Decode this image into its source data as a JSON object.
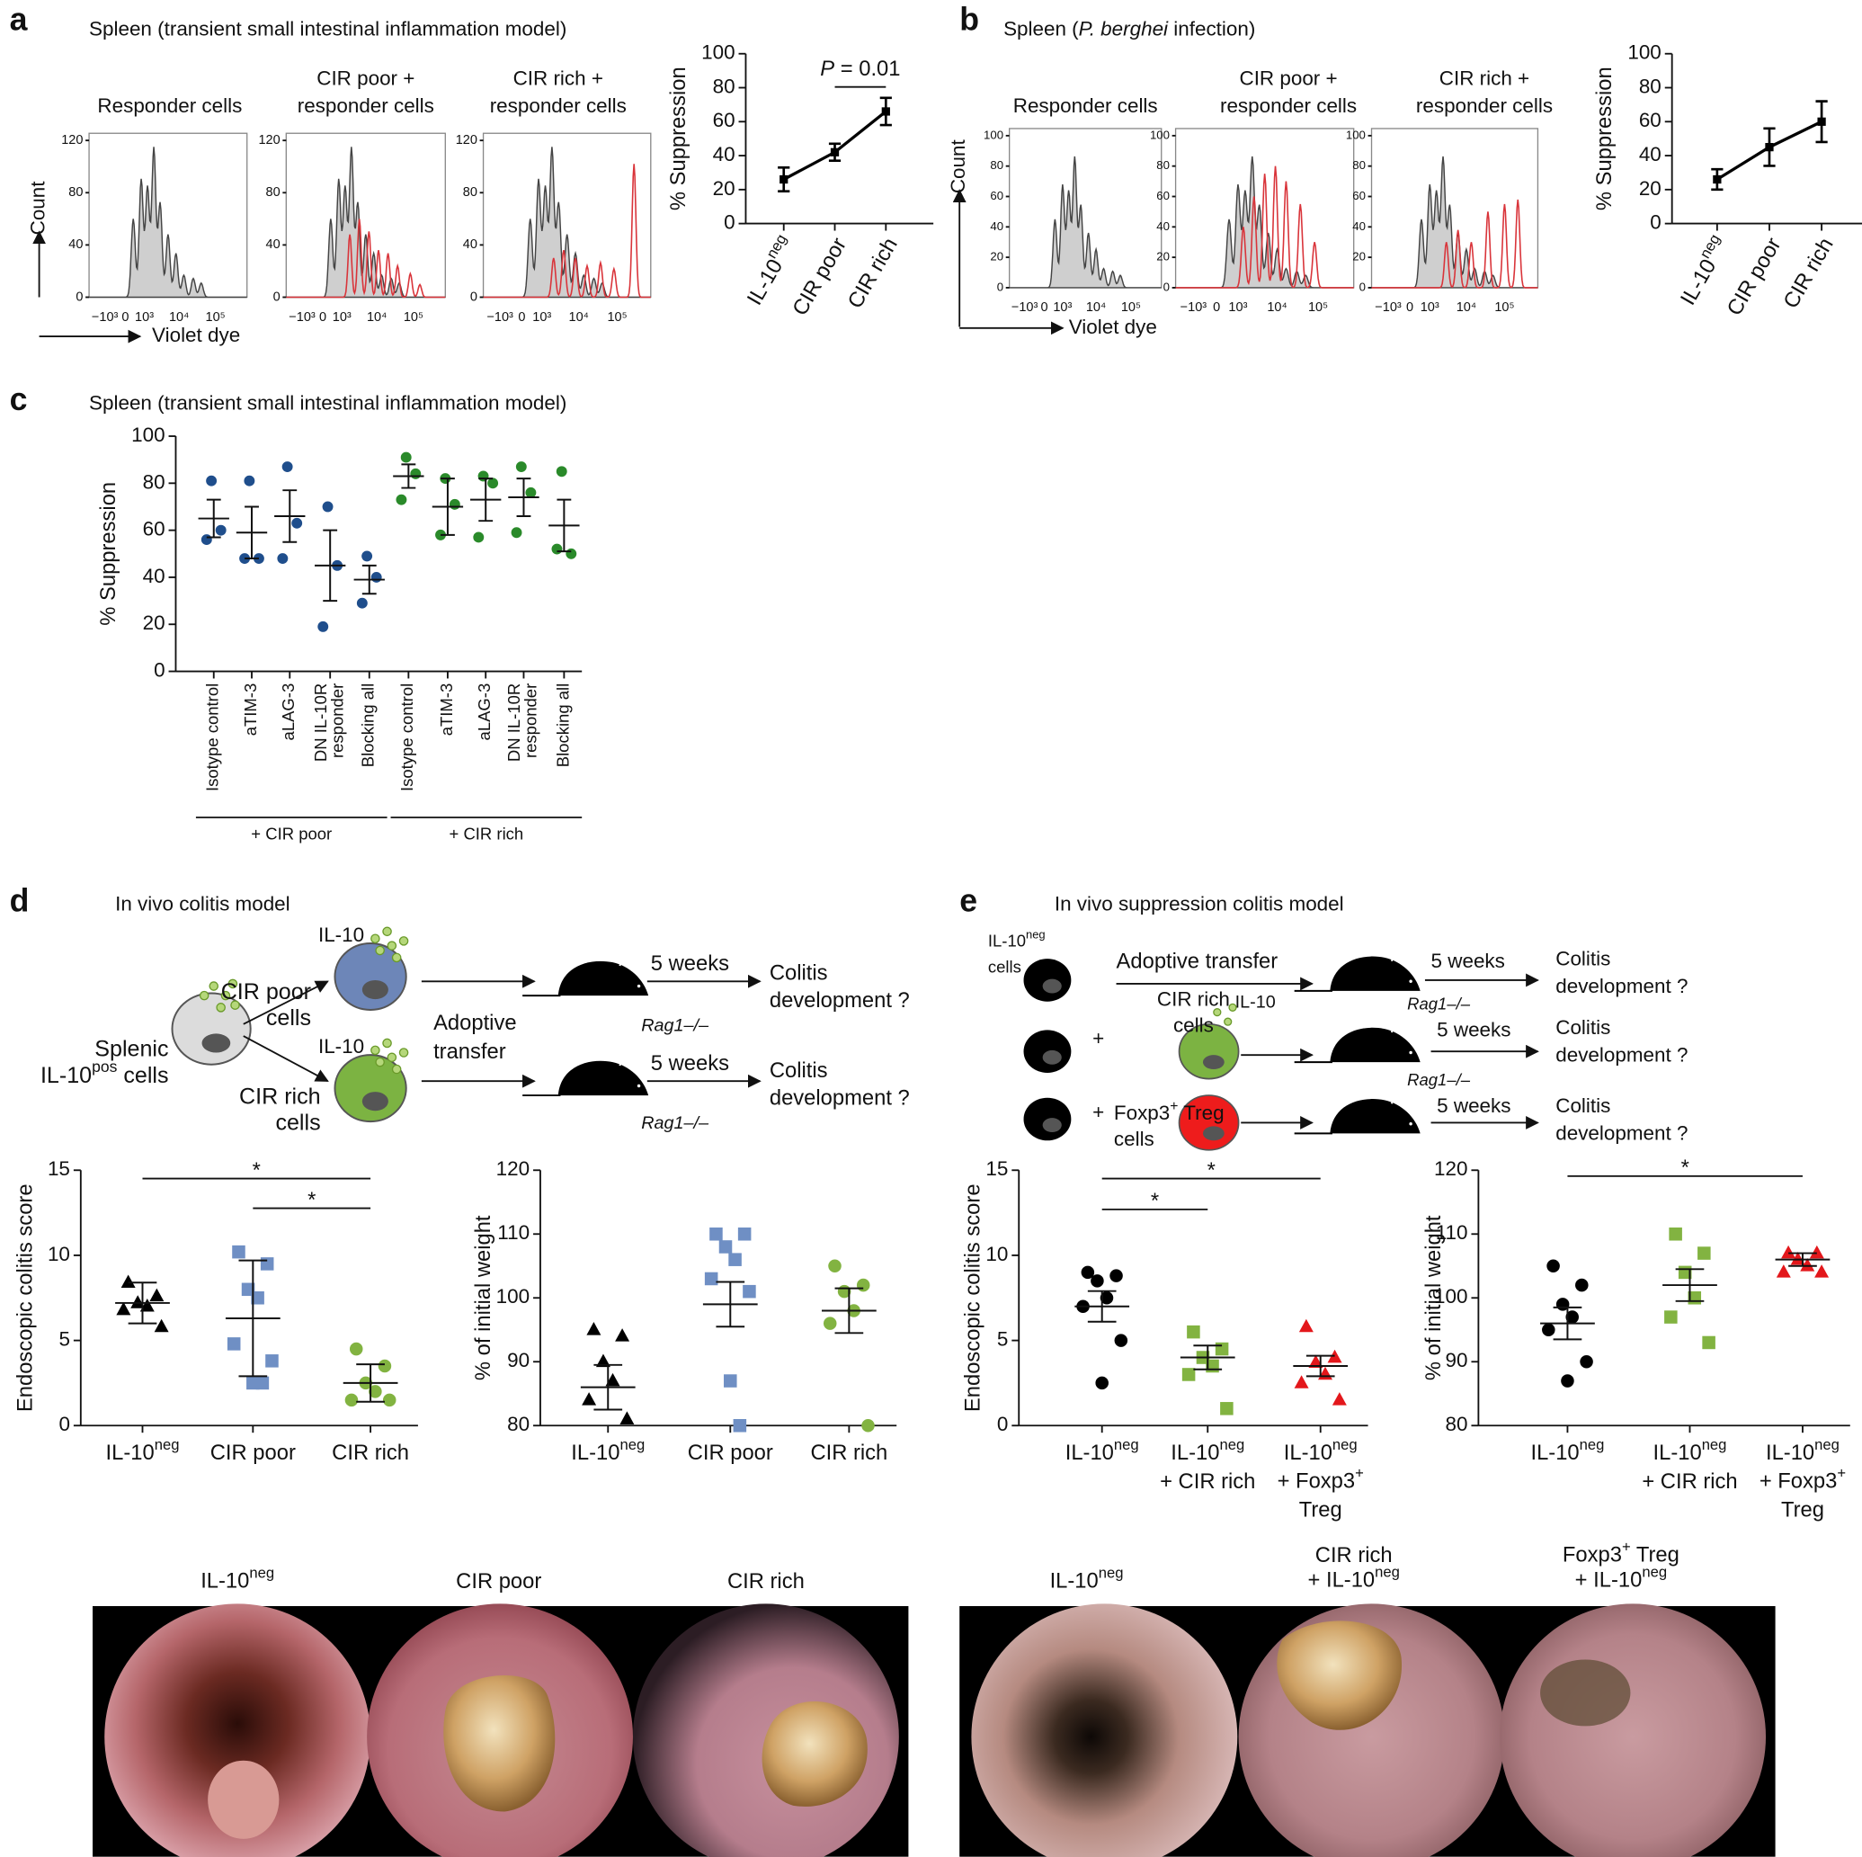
{
  "figure": {
    "panel_labels": [
      "a",
      "b",
      "c",
      "d",
      "e"
    ],
    "flow": [
      {
        "subtitle": "Spleen (transient small intestinal inflammation model)",
        "titles": [
          [
            "Responder cells"
          ],
          [
            "CIR poor +",
            "responder cells"
          ],
          [
            "CIR rich +",
            "responder cells"
          ]
        ],
        "ylim": [
          0,
          120
        ],
        "yticks": [
          0,
          40,
          80,
          120
        ],
        "xtick_labels": [
          "−10³",
          "0",
          "10³",
          "10⁴",
          "10⁵"
        ],
        "ylabel": "Count",
        "xlabel": "Violet dye"
      },
      {
        "subtitle": {
          "text": "Spleen (",
          "italic": "P. berghei",
          "after": " infection)"
        },
        "titles": [
          [
            "Responder cells"
          ],
          [
            "CIR poor +",
            "responder cells"
          ],
          [
            "CIR rich +",
            "responder cells"
          ]
        ],
        "ylim": [
          0,
          100
        ],
        "yticks": [
          0,
          20,
          40,
          60,
          80,
          100
        ],
        "xtick_labels": [
          "−10³",
          "0",
          "10³",
          "10⁴",
          "10⁵"
        ],
        "ylabel": "Count",
        "xlabel": "Violet dye"
      }
    ],
    "diagram_d": {
      "title": "In vivo colitis model",
      "source": [
        "Splenic",
        {
          "text": "IL-10",
          "sup": "pos",
          "after": " cells"
        }
      ],
      "cytokine": "IL-10",
      "poor": [
        "CIR poor",
        "cells"
      ],
      "rich": [
        "CIR rich",
        "cells"
      ],
      "transfer": [
        "Adoptive",
        "transfer"
      ],
      "duration": "5 weeks",
      "outcome": [
        "Colitis",
        "development ?"
      ],
      "host": "Rag1–/–"
    },
    "diagram_e": {
      "title": "In vivo suppression colitis model",
      "responder": [
        {
          "text": "IL-10",
          "sup": "neg"
        },
        "cells"
      ],
      "transfer": "Adoptive transfer",
      "plus": "+",
      "rich": [
        "CIR rich",
        "cells"
      ],
      "cytokine": "IL-10",
      "treg": [
        {
          "text": "Foxp3",
          "sup": "+",
          "after": " Treg"
        },
        "cells"
      ],
      "duration": "5 weeks",
      "outcome": [
        "Colitis",
        "development ?"
      ],
      "host": "Rag1–/–"
    },
    "photos": {
      "left": [
        [
          {
            "text": "IL-10",
            "sup": "neg"
          }
        ],
        [
          "CIR poor"
        ],
        [
          "CIR rich"
        ]
      ],
      "right": [
        [
          {
            "text": "IL-10",
            "sup": "neg"
          }
        ],
        [
          "CIR rich",
          {
            "text": "+ IL-10",
            "sup": "neg"
          }
        ],
        [
          {
            "text": "Foxp3",
            "sup": "+",
            "after": " Treg"
          },
          {
            "text": "+ IL-10",
            "sup": "neg"
          }
        ]
      ]
    }
  },
  "chart_data": [
    {
      "type": "line",
      "ylabel": "% Suppression",
      "categories": [
        [
          {
            "text": "IL-10",
            "sup": "neg"
          }
        ],
        [
          "CIR poor"
        ],
        [
          "CIR rich"
        ]
      ],
      "values": [
        26,
        42,
        66
      ],
      "errors": [
        7,
        5,
        8
      ],
      "color": "#000000",
      "ylim": [
        0,
        100
      ],
      "yticks": [
        0,
        20,
        40,
        60,
        80,
        100
      ],
      "significance": [
        {
          "from": 1,
          "to": 2,
          "label": {
            "italic": "P",
            "after": " = 0.01"
          }
        }
      ]
    },
    {
      "type": "line",
      "ylabel": "% Suppression",
      "categories": [
        [
          {
            "text": "IL-10",
            "sup": "neg"
          }
        ],
        [
          "CIR poor"
        ],
        [
          "CIR rich"
        ]
      ],
      "values": [
        26,
        45,
        60
      ],
      "errors": [
        6,
        11,
        12
      ],
      "color": "#000000",
      "ylim": [
        0,
        100
      ],
      "yticks": [
        0,
        20,
        40,
        60,
        80,
        100
      ]
    },
    {
      "type": "dot",
      "subtitle": "Spleen (transient small intestinal inflammation model)",
      "ylabel": "% Suppression",
      "categories": [
        [
          "Isotype control"
        ],
        [
          "aTIM-3"
        ],
        [
          "aLAG-3"
        ],
        [
          "DN IL-10R",
          "responder"
        ],
        [
          "Blocking all"
        ],
        [
          "Isotype control"
        ],
        [
          "aTIM-3"
        ],
        [
          "aLAG-3"
        ],
        [
          "DN IL-10R",
          "responder"
        ],
        [
          "Blocking all"
        ]
      ],
      "points": [
        [
          81,
          60,
          56
        ],
        [
          81,
          48,
          48
        ],
        [
          87,
          63,
          48
        ],
        [
          70,
          45,
          19
        ],
        [
          49,
          40,
          29
        ],
        [
          91,
          84,
          73
        ],
        [
          82,
          71,
          58
        ],
        [
          83,
          80,
          57
        ],
        [
          87,
          76,
          59
        ],
        [
          85,
          50,
          52
        ]
      ],
      "means": [
        65,
        59,
        66,
        45,
        39,
        83,
        70,
        73,
        74,
        62
      ],
      "errors": [
        8,
        11,
        11,
        15,
        6,
        5,
        12,
        9,
        8,
        11
      ],
      "colors": [
        "#1f4e8c",
        "#1f4e8c",
        "#1f4e8c",
        "#1f4e8c",
        "#1f4e8c",
        "#2a8a2a",
        "#2a8a2a",
        "#2a8a2a",
        "#2a8a2a",
        "#2a8a2a"
      ],
      "markers": [
        "circle",
        "circle",
        "circle",
        "circle",
        "circle",
        "circle",
        "circle",
        "circle",
        "circle",
        "circle"
      ],
      "groups": [
        {
          "label": "+ CIR poor",
          "members": [
            0,
            1,
            2,
            3,
            4
          ]
        },
        {
          "label": "+ CIR rich",
          "members": [
            5,
            6,
            7,
            8,
            9
          ]
        }
      ],
      "ylim": [
        0,
        100
      ],
      "yticks": [
        0,
        20,
        40,
        60,
        80,
        100
      ]
    },
    {
      "type": "dot",
      "ylabel": "Endoscopic colitis score",
      "categories": [
        [
          {
            "text": "IL-10",
            "sup": "neg"
          }
        ],
        [
          "CIR poor"
        ],
        [
          "CIR rich"
        ]
      ],
      "points": [
        [
          8.4,
          7.6,
          7.2,
          7.0,
          6.8,
          5.8
        ],
        [
          10.2,
          9.5,
          8.0,
          7.5,
          4.8,
          3.8,
          2.5,
          2.5
        ],
        [
          4.5,
          3.5,
          2.5,
          2.0,
          1.5,
          1.5
        ]
      ],
      "means": [
        7.2,
        6.3,
        2.5
      ],
      "errors": [
        1.2,
        3.4,
        1.1
      ],
      "colors": [
        "#000000",
        "#6f8fc4",
        "#82b341"
      ],
      "markers": [
        "triangle",
        "square",
        "circle"
      ],
      "ylim": [
        0,
        15
      ],
      "yticks": [
        0,
        5,
        10,
        15
      ],
      "significance": [
        {
          "from": 0,
          "to": 2,
          "label": "*"
        },
        {
          "from": 1,
          "to": 2,
          "label": "*"
        }
      ]
    },
    {
      "type": "dot",
      "ylabel": "% of initial weight",
      "categories": [
        [
          {
            "text": "IL-10",
            "sup": "neg"
          }
        ],
        [
          "CIR poor"
        ],
        [
          "CIR rich"
        ]
      ],
      "points": [
        [
          95,
          94,
          90,
          87,
          84,
          81
        ],
        [
          110,
          110,
          108,
          106,
          103,
          101,
          87,
          80
        ],
        [
          105,
          102,
          101,
          98,
          96,
          80
        ]
      ],
      "means": [
        86,
        99,
        98
      ],
      "errors": [
        3.5,
        3.5,
        3.5
      ],
      "colors": [
        "#000000",
        "#6f8fc4",
        "#82b341"
      ],
      "markers": [
        "triangle",
        "square",
        "circle"
      ],
      "ylim": [
        80,
        120
      ],
      "yticks": [
        80,
        90,
        100,
        110,
        120
      ]
    },
    {
      "type": "dot",
      "ylabel": "Endoscopic colitis score",
      "categories": [
        [
          {
            "text": "IL-10",
            "sup": "neg"
          }
        ],
        [
          {
            "text": "IL-10",
            "sup": "neg"
          },
          "+ CIR rich"
        ],
        [
          {
            "text": "IL-10",
            "sup": "neg"
          },
          {
            "text": "+ Foxp3",
            "sup": "+"
          },
          "Treg"
        ]
      ],
      "points": [
        [
          9.0,
          8.8,
          8.5,
          7.5,
          7.0,
          5.0,
          2.5
        ],
        [
          5.5,
          4.5,
          4.0,
          3.5,
          3.0,
          1.0
        ],
        [
          5.8,
          4.0,
          3.7,
          3.0,
          2.5,
          1.5
        ]
      ],
      "means": [
        7.0,
        4.0,
        3.5
      ],
      "errors": [
        0.9,
        0.7,
        0.6
      ],
      "colors": [
        "#000000",
        "#82b341",
        "#e3171b"
      ],
      "markers": [
        "circle",
        "square",
        "triangle"
      ],
      "ylim": [
        0,
        15
      ],
      "yticks": [
        0,
        5,
        10,
        15
      ],
      "significance": [
        {
          "from": 0,
          "to": 1,
          "label": "*"
        },
        {
          "from": 0,
          "to": 2,
          "label": "*"
        }
      ]
    },
    {
      "type": "dot",
      "ylabel": "% of initial weight",
      "categories": [
        [
          {
            "text": "IL-10",
            "sup": "neg"
          }
        ],
        [
          {
            "text": "IL-10",
            "sup": "neg"
          },
          "+ CIR rich"
        ],
        [
          {
            "text": "IL-10",
            "sup": "neg"
          },
          {
            "text": "+ Foxp3",
            "sup": "+"
          },
          "Treg"
        ]
      ],
      "points": [
        [
          105,
          102,
          99,
          97,
          95,
          90,
          87
        ],
        [
          110,
          107,
          104,
          100,
          97,
          93
        ],
        [
          107,
          107,
          106,
          105,
          104,
          104
        ]
      ],
      "means": [
        96,
        102,
        106
      ],
      "errors": [
        2.5,
        2.5,
        1
      ],
      "colors": [
        "#000000",
        "#82b341",
        "#e3171b"
      ],
      "markers": [
        "circle",
        "square",
        "triangle"
      ],
      "ylim": [
        80,
        120
      ],
      "yticks": [
        80,
        90,
        100,
        110,
        120
      ],
      "significance": [
        {
          "from": 0,
          "to": 2,
          "label": "*"
        }
      ]
    }
  ]
}
